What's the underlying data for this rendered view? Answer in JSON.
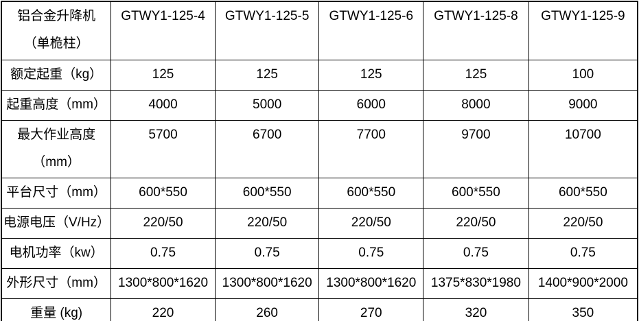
{
  "page": {
    "background_color": "#ffffff",
    "border_color": "#000000",
    "text_color": "#000000"
  },
  "table": {
    "corner": {
      "line1": "铝合金升降机",
      "line2": "（单桅柱）"
    },
    "models": [
      "GTWY1-125-4",
      "GTWY1-125-5",
      "GTWY1-125-6",
      "GTWY1-125-8",
      "GTWY1-125-9"
    ],
    "rows": [
      {
        "label": "额定起重（kg）",
        "values": [
          "125",
          "125",
          "125",
          "125",
          "100"
        ]
      },
      {
        "label": "起重高度（mm）",
        "values": [
          "4000",
          "5000",
          "6000",
          "8000",
          "9000"
        ]
      },
      {
        "label_lines": [
          "最大作业高度",
          "（mm）"
        ],
        "values": [
          "5700",
          "6700",
          "7700",
          "9700",
          "10700"
        ]
      },
      {
        "label": "平台尺寸（mm）",
        "values": [
          "600*550",
          "600*550",
          "600*550",
          "600*550",
          "600*550"
        ]
      },
      {
        "label": "电源电压（V/Hz）",
        "values": [
          "220/50",
          "220/50",
          "220/50",
          "220/50",
          "220/50"
        ]
      },
      {
        "label": "电机功率（kw）",
        "values": [
          "0.75",
          "0.75",
          "0.75",
          "0.75",
          "0.75"
        ]
      },
      {
        "label": "外形尺寸（mm）",
        "values": [
          "1300*800*1620",
          "1300*800*1620",
          "1300*800*1620",
          "1375*830*1980",
          "1400*900*2000"
        ]
      },
      {
        "label": "重量 (kg)",
        "values": [
          "220",
          "260",
          "270",
          "320",
          "350"
        ]
      }
    ]
  }
}
